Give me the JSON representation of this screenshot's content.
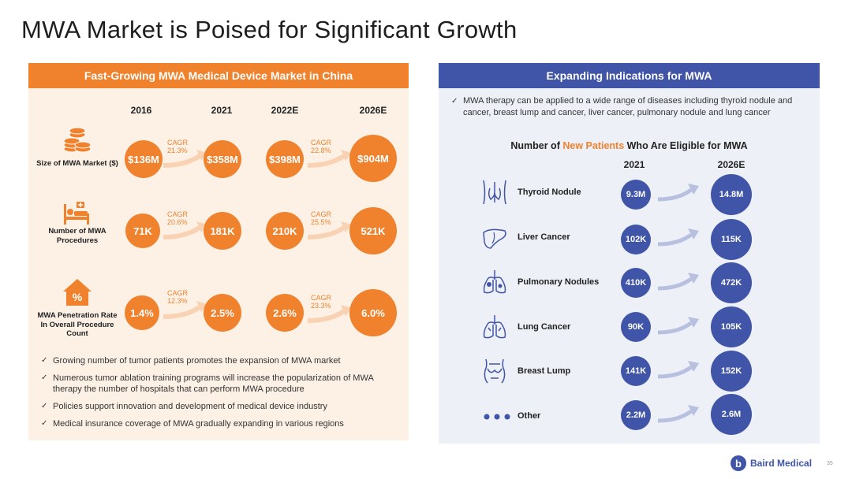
{
  "title": "MWA Market is Poised for Significant Growth",
  "left": {
    "header": "Fast-Growing MWA Medical Device Market in China",
    "columns": [
      "2016",
      "2021",
      "2022E",
      "2026E"
    ],
    "rows": [
      {
        "label": "Size of MWA Market ($)",
        "icon": "coins-icon",
        "values": [
          "$136M",
          "$358M",
          "$398M",
          "$904M"
        ],
        "cagr1": "CAGR 21.3%",
        "cagr2": "CAGR 22.8%"
      },
      {
        "label": "Number of MWA Procedures",
        "icon": "hospital-bed-icon",
        "values": [
          "71K",
          "181K",
          "210K",
          "521K"
        ],
        "cagr1": "CAGR 20.6%",
        "cagr2": "CAGR 25.5%"
      },
      {
        "label": "MWA Penetration Rate In Overall Procedure Count",
        "icon": "percent-house-icon",
        "values": [
          "1.4%",
          "2.5%",
          "2.6%",
          "6.0%"
        ],
        "cagr1": "CAGR 12.3%",
        "cagr2": "CAGR 23.3%"
      }
    ],
    "bullets": [
      "Growing number of tumor patients promotes the expansion of MWA market",
      "Numerous tumor ablation training programs will increase the popularization of MWA therapy the number of hospitals that can perform MWA procedure",
      "Policies support innovation and development of medical device industry",
      "Medical insurance coverage of MWA gradually expanding in various regions"
    ]
  },
  "right": {
    "header": "Expanding Indications for MWA",
    "bullet": "MWA therapy can be applied to a wide range of diseases including thyroid nodule and cancer, breast lump and cancer, liver cancer, pulmonary nodule and lung cancer",
    "subtitle_pre": "Number of ",
    "subtitle_hl": "New Patients",
    "subtitle_post": " Who Are Eligible for MWA",
    "columns": [
      "2021",
      "2026E"
    ],
    "rows": [
      {
        "label": "Thyroid Nodule",
        "icon": "thyroid-icon",
        "v2021": "9.3M",
        "v2026": "14.8M"
      },
      {
        "label": "Liver Cancer",
        "icon": "liver-icon",
        "v2021": "102K",
        "v2026": "115K"
      },
      {
        "label": "Pulmonary Nodules",
        "icon": "lungs-icon",
        "v2021": "410K",
        "v2026": "472K"
      },
      {
        "label": "Lung Cancer",
        "icon": "lungs-outline-icon",
        "v2021": "90K",
        "v2026": "105K"
      },
      {
        "label": "Breast Lump",
        "icon": "breast-icon",
        "v2021": "141K",
        "v2026": "152K"
      },
      {
        "label": "Other",
        "icon": "dots-icon",
        "v2021": "2.2M",
        "v2026": "2.6M"
      }
    ]
  },
  "footer": {
    "logo_text": "Baird Medical",
    "page": "35"
  },
  "colors": {
    "orange": "#f0822e",
    "blue": "#4055a8",
    "orange_bg": "#fdf1e6",
    "blue_bg": "#eef0f8"
  }
}
